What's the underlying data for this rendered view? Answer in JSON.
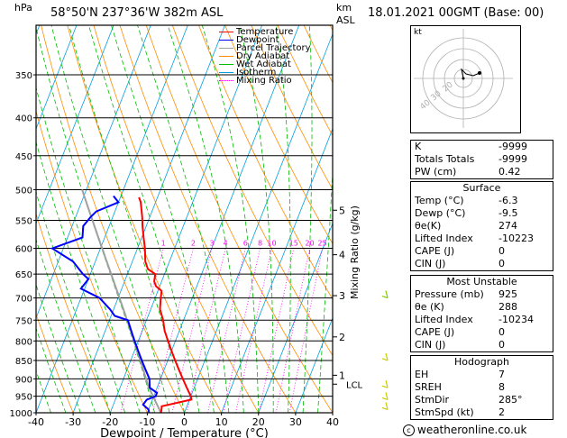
{
  "header": {
    "station": "58°50'N 237°36'W 382m ASL",
    "hpa_unit": "hPa",
    "km_unit": "km",
    "asl_unit": "ASL",
    "date": "18.01.2021 00GMT (Base: 00)"
  },
  "chart_data": {
    "type": "line",
    "xlabel": "Dewpoint / Temperature (°C)",
    "ylabel_right": "Mixing Ratio (g/kg)",
    "x_ticks": [
      -40,
      -30,
      -20,
      -10,
      0,
      10,
      20,
      30,
      40
    ],
    "pressure_ticks": [
      350,
      400,
      450,
      500,
      550,
      600,
      650,
      700,
      750,
      800,
      850,
      900,
      950,
      1000
    ],
    "xlim": [
      -40,
      40
    ],
    "plim": [
      300,
      1000
    ],
    "km_ticks": [
      {
        "label": "1",
        "p": 890
      },
      {
        "label": "2",
        "p": 790
      },
      {
        "label": "3",
        "p": 695
      },
      {
        "label": "4",
        "p": 612
      },
      {
        "label": "5",
        "p": 533
      }
    ],
    "lcl_label": "LCL",
    "lcl_p": 915,
    "mixing_ratio_labels": [
      "1",
      "2",
      "3",
      "4",
      "6",
      "8",
      "10",
      "15",
      "20",
      "25"
    ],
    "series": [
      {
        "name": "Temperature",
        "color": "#ff0000",
        "points": [
          [
            -6.3,
            1000
          ],
          [
            -6.5,
            990
          ],
          [
            -6.8,
            980
          ],
          [
            0.5,
            960
          ],
          [
            0,
            950
          ],
          [
            -2,
            925
          ],
          [
            -4,
            900
          ],
          [
            -6,
            875
          ],
          [
            -8,
            850
          ],
          [
            -10,
            825
          ],
          [
            -12,
            800
          ],
          [
            -14,
            775
          ],
          [
            -15.5,
            750
          ],
          [
            -17.5,
            725
          ],
          [
            -18.5,
            700
          ],
          [
            -19,
            685
          ],
          [
            -21,
            675
          ],
          [
            -22,
            665
          ],
          [
            -22.5,
            650
          ],
          [
            -25,
            640
          ],
          [
            -26.5,
            625
          ],
          [
            -28,
            600
          ],
          [
            -29.5,
            580
          ],
          [
            -31,
            560
          ],
          [
            -32,
            545
          ],
          [
            -34,
            520
          ],
          [
            -35,
            512
          ]
        ]
      },
      {
        "name": "Dewpoint",
        "color": "#0000ff",
        "points": [
          [
            -9.5,
            1000
          ],
          [
            -10,
            990
          ],
          [
            -12,
            975
          ],
          [
            -11.5,
            960
          ],
          [
            -9.5,
            950
          ],
          [
            -9.5,
            940
          ],
          [
            -12,
            925
          ],
          [
            -13,
            900
          ],
          [
            -15,
            875
          ],
          [
            -17,
            850
          ],
          [
            -19,
            825
          ],
          [
            -21,
            800
          ],
          [
            -23,
            775
          ],
          [
            -25,
            750
          ],
          [
            -29,
            740
          ],
          [
            -31,
            725
          ],
          [
            -35,
            700
          ],
          [
            -41,
            680
          ],
          [
            -40,
            660
          ],
          [
            -42,
            650
          ],
          [
            -46,
            625
          ],
          [
            -53,
            600
          ],
          [
            -46,
            580
          ],
          [
            -47,
            560
          ],
          [
            -46,
            545
          ],
          [
            -45,
            535
          ],
          [
            -40,
            520
          ],
          [
            -42,
            510
          ]
        ]
      },
      {
        "name": "Parcel Trajectory",
        "color": "#a0a0a0"
      },
      {
        "name": "Dry Adiabat",
        "color": "#ff8c00"
      },
      {
        "name": "Wet Adiabat",
        "color": "#00bb00"
      },
      {
        "name": "Isotherm",
        "color": "#00a0e0"
      },
      {
        "name": "Mixing Ratio",
        "color": "#ff00ff"
      }
    ]
  },
  "hodograph": {
    "label": "kt",
    "ring_labels": [
      "40",
      "30",
      "20"
    ]
  },
  "indices": [
    {
      "label": "K",
      "value": "-9999"
    },
    {
      "label": "Totals Totals",
      "value": "-9999"
    },
    {
      "label": "PW (cm)",
      "value": "0.42"
    }
  ],
  "surface": {
    "title": "Surface",
    "rows": [
      {
        "label": "Temp (°C)",
        "value": "-6.3"
      },
      {
        "label": "Dewp (°C)",
        "value": "-9.5"
      },
      {
        "label": "θe(K)",
        "value": "274"
      },
      {
        "label": "Lifted Index",
        "value": "-10223"
      },
      {
        "label": "CAPE (J)",
        "value": "0"
      },
      {
        "label": "CIN (J)",
        "value": "0"
      }
    ]
  },
  "most_unstable": {
    "title": "Most Unstable",
    "rows": [
      {
        "label": "Pressure (mb)",
        "value": "925"
      },
      {
        "label": "θe (K)",
        "value": "288"
      },
      {
        "label": "Lifted Index",
        "value": "-10234"
      },
      {
        "label": "CAPE (J)",
        "value": "0"
      },
      {
        "label": "CIN (J)",
        "value": "0"
      }
    ]
  },
  "hodo_table": {
    "title": "Hodograph",
    "rows": [
      {
        "label": "EH",
        "value": "7"
      },
      {
        "label": "SREH",
        "value": "8"
      },
      {
        "label": "StmDir",
        "value": "285°"
      },
      {
        "label": "StmSpd (kt)",
        "value": "2"
      }
    ]
  },
  "copyright": "weatheronline.co.uk"
}
